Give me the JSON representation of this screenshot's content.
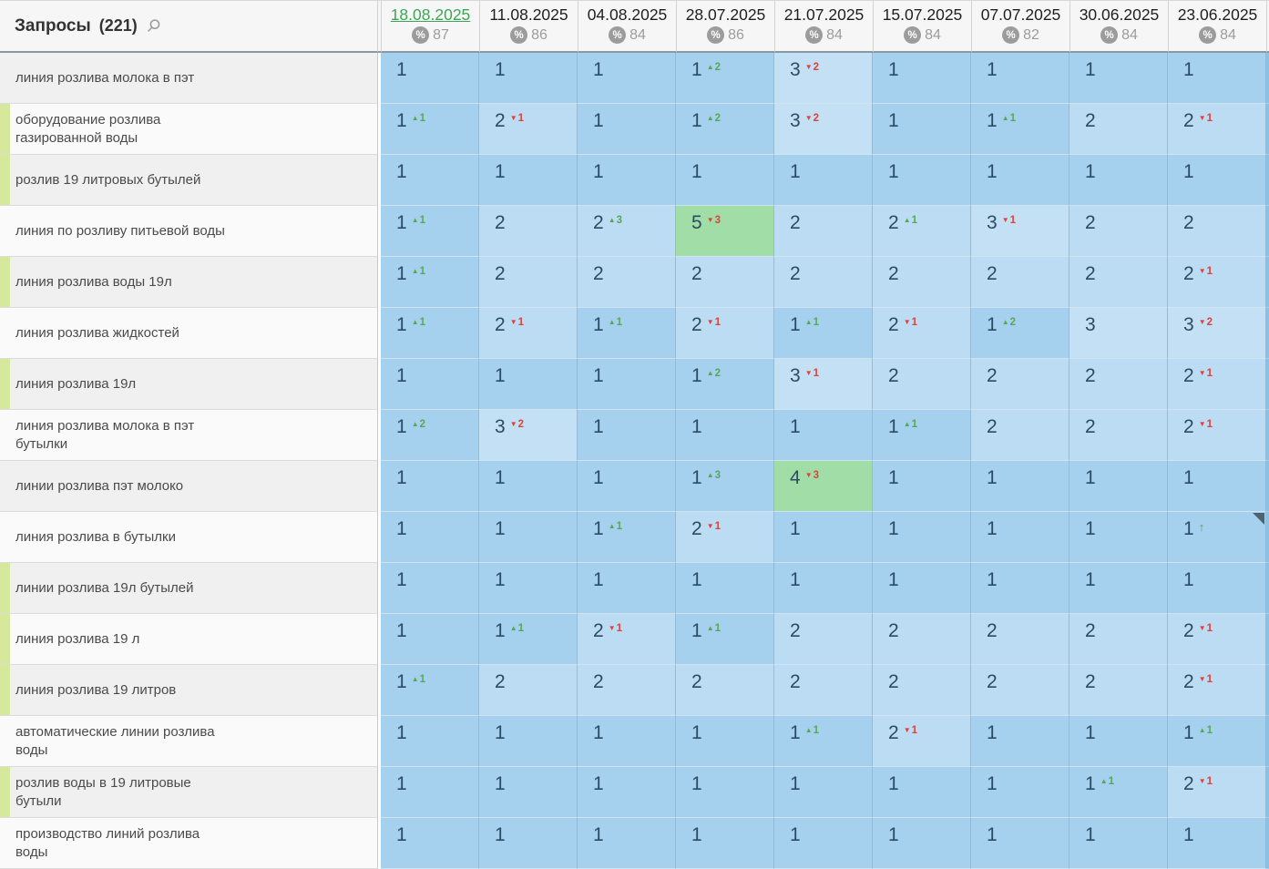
{
  "header": {
    "queries_title": "Запросы",
    "queries_count": "(221)",
    "search_icon": "magnifier-icon",
    "percent_symbol": "%",
    "dates": [
      {
        "label": "18.08.2025",
        "percent": 87,
        "selected": true
      },
      {
        "label": "11.08.2025",
        "percent": 86,
        "selected": false
      },
      {
        "label": "04.08.2025",
        "percent": 84,
        "selected": false
      },
      {
        "label": "28.07.2025",
        "percent": 86,
        "selected": false
      },
      {
        "label": "21.07.2025",
        "percent": 84,
        "selected": false
      },
      {
        "label": "15.07.2025",
        "percent": 84,
        "selected": false
      },
      {
        "label": "07.07.2025",
        "percent": 82,
        "selected": false
      },
      {
        "label": "30.06.2025",
        "percent": 84,
        "selected": false
      },
      {
        "label": "23.06.2025",
        "percent": 84,
        "selected": false
      }
    ]
  },
  "colors": {
    "pos1": "#a5d1ee",
    "pos2": "#bcdcf3",
    "pos3": "#c3e0f5",
    "pos410": "#a1dea7",
    "flag": "#d6e89c",
    "sel_date": "#3da556",
    "up": "#55a858",
    "down": "#e2403a",
    "num": "#2d4b63",
    "badge": "#9c9c9c",
    "hdr_border": "#8a98a4"
  },
  "rows": [
    {
      "query": "линия розлива молока в пэт",
      "flag": false,
      "cells": [
        {
          "v": 1
        },
        {
          "v": 1
        },
        {
          "v": 1
        },
        {
          "v": 1,
          "d": 2,
          "dir": "up"
        },
        {
          "v": 3,
          "d": 2,
          "dir": "down"
        },
        {
          "v": 1
        },
        {
          "v": 1
        },
        {
          "v": 1
        },
        {
          "v": 1
        }
      ]
    },
    {
      "query": "оборудование розлива газированной воды",
      "flag": true,
      "cells": [
        {
          "v": 1,
          "d": 1,
          "dir": "up"
        },
        {
          "v": 2,
          "d": 1,
          "dir": "down"
        },
        {
          "v": 1
        },
        {
          "v": 1,
          "d": 2,
          "dir": "up"
        },
        {
          "v": 3,
          "d": 2,
          "dir": "down"
        },
        {
          "v": 1
        },
        {
          "v": 1,
          "d": 1,
          "dir": "up"
        },
        {
          "v": 2
        },
        {
          "v": 2,
          "d": 1,
          "dir": "down"
        }
      ]
    },
    {
      "query": "розлив 19 литровых бутылей",
      "flag": true,
      "cells": [
        {
          "v": 1
        },
        {
          "v": 1
        },
        {
          "v": 1
        },
        {
          "v": 1
        },
        {
          "v": 1
        },
        {
          "v": 1
        },
        {
          "v": 1
        },
        {
          "v": 1
        },
        {
          "v": 1
        }
      ]
    },
    {
      "query": "линия по розливу питьевой воды",
      "flag": false,
      "cells": [
        {
          "v": 1,
          "d": 1,
          "dir": "up"
        },
        {
          "v": 2
        },
        {
          "v": 2,
          "d": 3,
          "dir": "up"
        },
        {
          "v": 5,
          "d": 3,
          "dir": "down"
        },
        {
          "v": 2
        },
        {
          "v": 2,
          "d": 1,
          "dir": "up"
        },
        {
          "v": 3,
          "d": 1,
          "dir": "down"
        },
        {
          "v": 2
        },
        {
          "v": 2
        }
      ]
    },
    {
      "query": "линия розлива воды 19л",
      "flag": true,
      "cells": [
        {
          "v": 1,
          "d": 1,
          "dir": "up"
        },
        {
          "v": 2
        },
        {
          "v": 2
        },
        {
          "v": 2
        },
        {
          "v": 2
        },
        {
          "v": 2
        },
        {
          "v": 2
        },
        {
          "v": 2
        },
        {
          "v": 2,
          "d": 1,
          "dir": "down"
        }
      ]
    },
    {
      "query": "линия розлива жидкостей",
      "flag": false,
      "cells": [
        {
          "v": 1,
          "d": 1,
          "dir": "up"
        },
        {
          "v": 2,
          "d": 1,
          "dir": "down"
        },
        {
          "v": 1,
          "d": 1,
          "dir": "up"
        },
        {
          "v": 2,
          "d": 1,
          "dir": "down"
        },
        {
          "v": 1,
          "d": 1,
          "dir": "up"
        },
        {
          "v": 2,
          "d": 1,
          "dir": "down"
        },
        {
          "v": 1,
          "d": 2,
          "dir": "up"
        },
        {
          "v": 3
        },
        {
          "v": 3,
          "d": 2,
          "dir": "down"
        }
      ]
    },
    {
      "query": "линия розлива 19л",
      "flag": true,
      "cells": [
        {
          "v": 1
        },
        {
          "v": 1
        },
        {
          "v": 1
        },
        {
          "v": 1,
          "d": 2,
          "dir": "up"
        },
        {
          "v": 3,
          "d": 1,
          "dir": "down"
        },
        {
          "v": 2
        },
        {
          "v": 2
        },
        {
          "v": 2
        },
        {
          "v": 2,
          "d": 1,
          "dir": "down"
        }
      ]
    },
    {
      "query": "линия розлива молока в пэт бутылки",
      "flag": false,
      "cells": [
        {
          "v": 1,
          "d": 2,
          "dir": "up"
        },
        {
          "v": 3,
          "d": 2,
          "dir": "down"
        },
        {
          "v": 1
        },
        {
          "v": 1
        },
        {
          "v": 1
        },
        {
          "v": 1,
          "d": 1,
          "dir": "up"
        },
        {
          "v": 2
        },
        {
          "v": 2
        },
        {
          "v": 2,
          "d": 1,
          "dir": "down"
        }
      ]
    },
    {
      "query": "линии розлива пэт молоко",
      "flag": false,
      "cells": [
        {
          "v": 1
        },
        {
          "v": 1
        },
        {
          "v": 1
        },
        {
          "v": 1,
          "d": 3,
          "dir": "up"
        },
        {
          "v": 4,
          "d": 3,
          "dir": "down"
        },
        {
          "v": 1
        },
        {
          "v": 1
        },
        {
          "v": 1
        },
        {
          "v": 1
        }
      ]
    },
    {
      "query": "линия розлива в бутылки",
      "flag": false,
      "cells": [
        {
          "v": 1
        },
        {
          "v": 1
        },
        {
          "v": 1,
          "d": 1,
          "dir": "up"
        },
        {
          "v": 2,
          "d": 1,
          "dir": "down"
        },
        {
          "v": 1
        },
        {
          "v": 1
        },
        {
          "v": 1
        },
        {
          "v": 1
        },
        {
          "v": 1,
          "arrow": "up",
          "marker": true
        }
      ]
    },
    {
      "query": "линии розлива 19л бутылей",
      "flag": true,
      "cells": [
        {
          "v": 1
        },
        {
          "v": 1
        },
        {
          "v": 1
        },
        {
          "v": 1
        },
        {
          "v": 1
        },
        {
          "v": 1
        },
        {
          "v": 1
        },
        {
          "v": 1
        },
        {
          "v": 1
        }
      ]
    },
    {
      "query": "линия розлива 19 л",
      "flag": true,
      "cells": [
        {
          "v": 1
        },
        {
          "v": 1,
          "d": 1,
          "dir": "up"
        },
        {
          "v": 2,
          "d": 1,
          "dir": "down"
        },
        {
          "v": 1,
          "d": 1,
          "dir": "up"
        },
        {
          "v": 2
        },
        {
          "v": 2
        },
        {
          "v": 2
        },
        {
          "v": 2
        },
        {
          "v": 2,
          "d": 1,
          "dir": "down"
        }
      ]
    },
    {
      "query": "линия розлива 19 литров",
      "flag": true,
      "cells": [
        {
          "v": 1,
          "d": 1,
          "dir": "up"
        },
        {
          "v": 2
        },
        {
          "v": 2
        },
        {
          "v": 2
        },
        {
          "v": 2
        },
        {
          "v": 2
        },
        {
          "v": 2
        },
        {
          "v": 2
        },
        {
          "v": 2,
          "d": 1,
          "dir": "down"
        }
      ]
    },
    {
      "query": "автоматические линии розлива воды",
      "flag": false,
      "cells": [
        {
          "v": 1
        },
        {
          "v": 1
        },
        {
          "v": 1
        },
        {
          "v": 1
        },
        {
          "v": 1,
          "d": 1,
          "dir": "up"
        },
        {
          "v": 2,
          "d": 1,
          "dir": "down"
        },
        {
          "v": 1
        },
        {
          "v": 1
        },
        {
          "v": 1,
          "d": 1,
          "dir": "up"
        }
      ]
    },
    {
      "query": "розлив воды в 19 литровые бутыли",
      "flag": true,
      "cells": [
        {
          "v": 1
        },
        {
          "v": 1
        },
        {
          "v": 1
        },
        {
          "v": 1
        },
        {
          "v": 1
        },
        {
          "v": 1
        },
        {
          "v": 1
        },
        {
          "v": 1,
          "d": 1,
          "dir": "up"
        },
        {
          "v": 2,
          "d": 1,
          "dir": "down"
        }
      ]
    },
    {
      "query": "производство линий розлива воды",
      "flag": false,
      "cells": [
        {
          "v": 1
        },
        {
          "v": 1
        },
        {
          "v": 1
        },
        {
          "v": 1
        },
        {
          "v": 1
        },
        {
          "v": 1
        },
        {
          "v": 1
        },
        {
          "v": 1
        },
        {
          "v": 1
        }
      ]
    }
  ]
}
